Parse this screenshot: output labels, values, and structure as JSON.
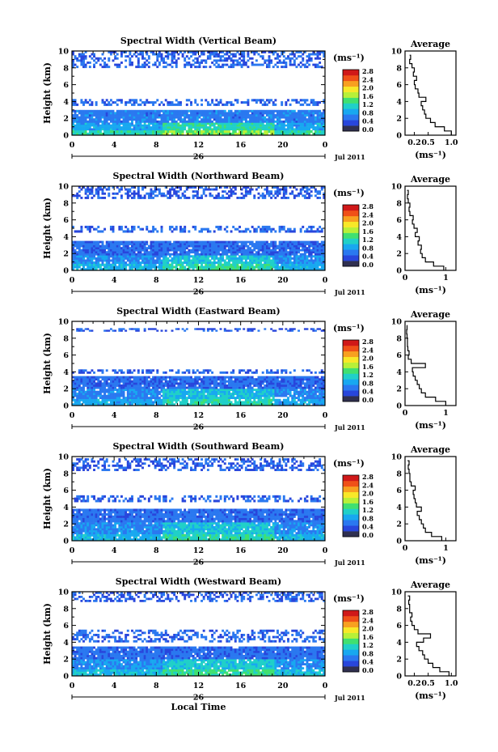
{
  "chart_data": [
    {
      "type": "heatmap",
      "title": "Spectral Width (Vertical Beam)",
      "ylabel": "Height (km)",
      "xlim": [
        0,
        24
      ],
      "ylim": [
        0,
        10
      ],
      "x_ticks": [
        0,
        4,
        8,
        12,
        16,
        20,
        24
      ],
      "y_ticks": [
        0,
        2,
        4,
        6,
        8,
        10
      ],
      "date_day": "26",
      "date_label": "Jul 2011",
      "colorbar": {
        "unit": "(ms⁻¹)",
        "range": [
          0,
          2.8
        ],
        "ticks": [
          "0.0",
          "0.4",
          "0.8",
          "1.2",
          "1.6",
          "2.0",
          "2.4",
          "2.8"
        ]
      },
      "layers": [
        {
          "y0": 0,
          "y1": 0.6,
          "width": 0.9
        },
        {
          "y0": 0.6,
          "y1": 1.5,
          "width": 0.55
        },
        {
          "y0": 1.5,
          "y1": 3.0,
          "width": 0.3
        },
        {
          "y0": 3.5,
          "y1": 4.3,
          "width": 0.2
        },
        {
          "y0": 8.0,
          "y1": 10.0,
          "width": 0.15
        }
      ],
      "profile": {
        "xlabel": "(ms⁻¹)",
        "title": "Average",
        "xlim": [
          0,
          1.1
        ],
        "x_ticks": [
          0.2,
          0.5,
          1.0
        ],
        "x_tick_labels": [
          "0.2",
          "0.5",
          "1.0"
        ],
        "heights": [
          0,
          0.5,
          1,
          1.5,
          2,
          2.5,
          3,
          3.5,
          4,
          4.5,
          5,
          5.5,
          6,
          6.5,
          7,
          7.5,
          8,
          8.5,
          9,
          9.5
        ],
        "values": [
          1.0,
          0.85,
          0.65,
          0.55,
          0.45,
          0.42,
          0.38,
          0.35,
          0.45,
          0.3,
          0.28,
          0.22,
          0.2,
          0.25,
          0.18,
          0.2,
          0.15,
          0.1,
          0.12,
          0.1
        ]
      }
    },
    {
      "type": "heatmap",
      "title": "Spectral Width (Northward Beam)",
      "ylabel": "Height (km)",
      "xlim": [
        0,
        24
      ],
      "ylim": [
        0,
        10
      ],
      "x_ticks": [
        0,
        4,
        8,
        12,
        16,
        20,
        24
      ],
      "y_ticks": [
        0,
        2,
        4,
        6,
        8,
        10
      ],
      "date_day": "26",
      "date_label": "Jul 2011",
      "colorbar": {
        "unit": "(ms⁻¹)",
        "range": [
          0,
          2.8
        ],
        "ticks": [
          "0.0",
          "0.4",
          "0.8",
          "1.2",
          "1.6",
          "2.0",
          "2.4",
          "2.8"
        ]
      },
      "layers": [
        {
          "y0": 0,
          "y1": 0.8,
          "width": 0.6
        },
        {
          "y0": 0.8,
          "y1": 1.8,
          "width": 0.4
        },
        {
          "y0": 1.8,
          "y1": 3.5,
          "width": 0.22
        },
        {
          "y0": 4.5,
          "y1": 5.3,
          "width": 0.18
        },
        {
          "y0": 8.5,
          "y1": 10.0,
          "width": 0.12
        }
      ],
      "profile": {
        "xlabel": "(ms⁻¹)",
        "title": "Average",
        "xlim": [
          0,
          1.25
        ],
        "x_ticks": [
          0,
          1
        ],
        "x_tick_labels": [
          "0",
          "1"
        ],
        "heights": [
          0,
          0.5,
          1,
          1.5,
          2,
          2.5,
          3,
          3.5,
          4,
          4.5,
          5,
          5.5,
          6,
          6.5,
          7,
          7.5,
          8,
          8.5,
          9,
          9.5
        ],
        "values": [
          0.95,
          0.7,
          0.5,
          0.42,
          0.38,
          0.4,
          0.32,
          0.35,
          0.25,
          0.3,
          0.22,
          0.18,
          0.2,
          0.12,
          0.1,
          0.12,
          0.08,
          0.06,
          0.08,
          0.05
        ]
      }
    },
    {
      "type": "heatmap",
      "title": "Spectral Width (Eastward Beam)",
      "ylabel": "Height (km)",
      "xlim": [
        0,
        24
      ],
      "ylim": [
        0,
        10
      ],
      "x_ticks": [
        0,
        4,
        8,
        12,
        16,
        20,
        24
      ],
      "y_ticks": [
        0,
        2,
        4,
        6,
        8,
        10
      ],
      "date_day": "26",
      "date_label": "Jul 2011",
      "colorbar": {
        "unit": "(ms⁻¹)",
        "range": [
          0,
          2.8
        ],
        "ticks": [
          "0.0",
          "0.4",
          "0.8",
          "1.2",
          "1.6",
          "2.0",
          "2.4",
          "2.8"
        ]
      },
      "layers": [
        {
          "y0": 0,
          "y1": 0.8,
          "width": 0.55
        },
        {
          "y0": 0.8,
          "y1": 2.0,
          "width": 0.35
        },
        {
          "y0": 2.0,
          "y1": 3.5,
          "width": 0.2
        },
        {
          "y0": 3.8,
          "y1": 4.3,
          "width": 0.15
        },
        {
          "y0": 8.8,
          "y1": 9.2,
          "width": 0.12
        }
      ],
      "profile": {
        "xlabel": "(ms⁻¹)",
        "title": "Average",
        "xlim": [
          0,
          1.25
        ],
        "x_ticks": [
          0,
          1
        ],
        "x_tick_labels": [
          "0",
          "1"
        ],
        "heights": [
          0,
          0.5,
          1,
          1.5,
          2,
          2.5,
          3,
          3.5,
          4,
          4.5,
          5,
          5.5,
          6,
          6.5,
          7,
          7.5,
          8,
          8.5,
          9,
          9.5
        ],
        "values": [
          1.0,
          0.75,
          0.5,
          0.4,
          0.35,
          0.3,
          0.25,
          0.2,
          0.18,
          0.5,
          0.15,
          0.08,
          0.1,
          0.07,
          0.06,
          0.06,
          0.05,
          0.04,
          0.05,
          0.04
        ]
      }
    },
    {
      "type": "heatmap",
      "title": "Spectral Width (Southward Beam)",
      "ylabel": "Height (km)",
      "xlim": [
        0,
        24
      ],
      "ylim": [
        0,
        10
      ],
      "x_ticks": [
        0,
        4,
        8,
        12,
        16,
        20,
        24
      ],
      "y_ticks": [
        0,
        2,
        4,
        6,
        8,
        10
      ],
      "date_day": "26",
      "date_label": "Jul 2011",
      "colorbar": {
        "unit": "(ms⁻¹)",
        "range": [
          0,
          2.8
        ],
        "ticks": [
          "0.0",
          "0.4",
          "0.8",
          "1.2",
          "1.6",
          "2.0",
          "2.4",
          "2.8"
        ]
      },
      "layers": [
        {
          "y0": 0,
          "y1": 0.8,
          "width": 0.6
        },
        {
          "y0": 0.8,
          "y1": 2.2,
          "width": 0.38
        },
        {
          "y0": 2.2,
          "y1": 3.8,
          "width": 0.22
        },
        {
          "y0": 4.6,
          "y1": 5.4,
          "width": 0.16
        },
        {
          "y0": 8.3,
          "y1": 9.8,
          "width": 0.12
        }
      ],
      "profile": {
        "xlabel": "(ms⁻¹)",
        "title": "Average",
        "xlim": [
          0,
          1.25
        ],
        "x_ticks": [
          0,
          1
        ],
        "x_tick_labels": [
          "0",
          "1"
        ],
        "heights": [
          0,
          0.5,
          1,
          1.5,
          2,
          2.5,
          3,
          3.5,
          4,
          4.5,
          5,
          5.5,
          6,
          6.5,
          7,
          7.5,
          8,
          8.5,
          9,
          9.5
        ],
        "values": [
          0.9,
          0.65,
          0.5,
          0.45,
          0.4,
          0.35,
          0.3,
          0.4,
          0.28,
          0.25,
          0.22,
          0.2,
          0.25,
          0.15,
          0.12,
          0.12,
          0.1,
          0.08,
          0.1,
          0.06
        ]
      }
    },
    {
      "type": "heatmap",
      "title": "Spectral Width (Westward Beam)",
      "ylabel": "Height (km)",
      "xlabel": "Local Time",
      "xlim": [
        0,
        24
      ],
      "ylim": [
        0,
        10
      ],
      "x_ticks": [
        0,
        4,
        8,
        12,
        16,
        20,
        24
      ],
      "y_ticks": [
        0,
        2,
        4,
        6,
        8,
        10
      ],
      "date_day": "26",
      "date_label": "Jul 2011",
      "colorbar": {
        "unit": "(ms⁻¹)",
        "range": [
          0,
          2.8
        ],
        "ticks": [
          "0.0",
          "0.4",
          "0.8",
          "1.2",
          "1.6",
          "2.0",
          "2.4",
          "2.8"
        ]
      },
      "layers": [
        {
          "y0": 0,
          "y1": 0.8,
          "width": 0.7
        },
        {
          "y0": 0.8,
          "y1": 2.0,
          "width": 0.42
        },
        {
          "y0": 2.0,
          "y1": 3.5,
          "width": 0.22
        },
        {
          "y0": 4.0,
          "y1": 5.5,
          "width": 0.2
        },
        {
          "y0": 8.8,
          "y1": 10.0,
          "width": 0.12
        }
      ],
      "profile": {
        "xlabel": "(ms⁻¹)",
        "title": "Average",
        "xlim": [
          0,
          1.1
        ],
        "x_ticks": [
          0.2,
          0.5,
          1.0
        ],
        "x_tick_labels": [
          "0.2",
          "0.5",
          "1.0"
        ],
        "heights": [
          0,
          0.5,
          1,
          1.5,
          2,
          2.5,
          3,
          3.5,
          4,
          4.5,
          5,
          5.5,
          6,
          6.5,
          7,
          7.5,
          8,
          8.5,
          9,
          9.5
        ],
        "values": [
          0.95,
          0.75,
          0.6,
          0.5,
          0.42,
          0.38,
          0.3,
          0.25,
          0.4,
          0.55,
          0.28,
          0.2,
          0.15,
          0.12,
          0.15,
          0.1,
          0.1,
          0.08,
          0.1,
          0.06
        ]
      }
    }
  ],
  "colors": {
    "colormap": [
      "#4c3c96",
      "#2846dc",
      "#2a78f0",
      "#18a8f0",
      "#20d0c8",
      "#40e070",
      "#b8f038",
      "#f8e828",
      "#f8a020",
      "#f05018",
      "#d01818"
    ],
    "lowest": "#303050"
  }
}
